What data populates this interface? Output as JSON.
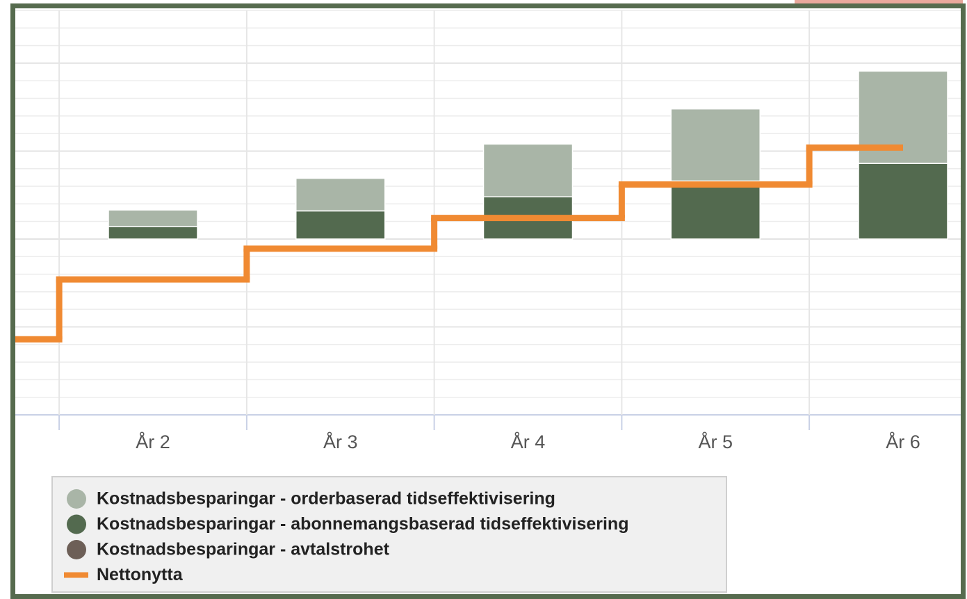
{
  "chart_data": {
    "type": "bar",
    "categories": [
      null,
      "År 2",
      "År 3",
      "År 4",
      "År 5",
      "År 6"
    ],
    "series": [
      {
        "name": "Kostnadsbesparingar - orderbaserad tidseffektivisering",
        "color": "#a9b5a7",
        "values": [
          null,
          0.95,
          1.85,
          3.0,
          4.1,
          5.25
        ]
      },
      {
        "name": "Kostnadsbesparingar - abonnemangsbaserad tidseffektivisering",
        "color": "#536a4f",
        "values": [
          null,
          0.7,
          1.6,
          2.4,
          3.3,
          4.3
        ]
      },
      {
        "name": "Kostnadsbesparingar - avtalstrohet",
        "color": "#6d5f57",
        "values": [
          null,
          0,
          0,
          0,
          0,
          0
        ]
      },
      {
        "name": "Nettonytta",
        "color": "#f08a32",
        "type": "line",
        "values": [
          -5.7,
          -2.3,
          -0.55,
          1.2,
          3.1,
          5.2
        ]
      }
    ],
    "ylim": [
      -10,
      13
    ],
    "yticks": [
      -10,
      -9,
      -8,
      -7,
      -6,
      -5,
      -4,
      -3,
      -2,
      -1,
      0,
      1,
      2,
      3,
      4,
      5,
      6,
      7,
      8,
      9,
      10,
      11,
      12,
      13
    ],
    "grid": true,
    "legend": "bottom"
  }
}
